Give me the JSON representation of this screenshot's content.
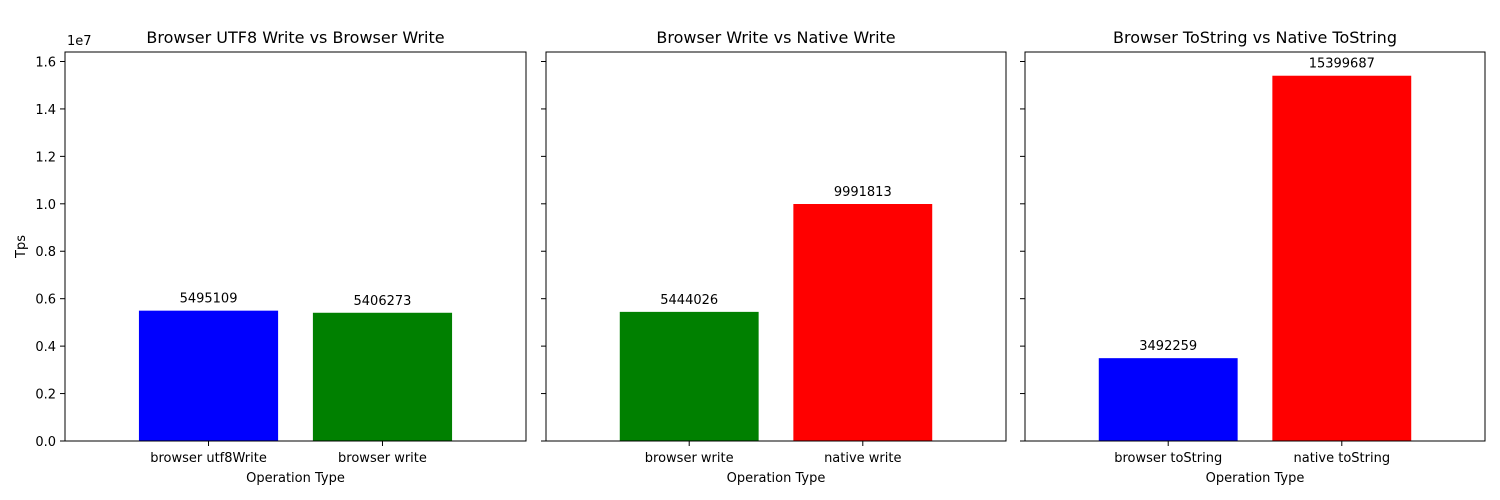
{
  "chart_data": [
    {
      "type": "bar",
      "title": "Browser UTF8 Write vs Browser Write",
      "xlabel": "Operation Type",
      "ylabel": "Tps",
      "ylim": [
        0,
        16400000
      ],
      "yticks": [
        "0.0",
        "0.2",
        "0.4",
        "0.6",
        "0.8",
        "1.0",
        "1.2",
        "1.4",
        "1.6"
      ],
      "y_offset_label": "1e7",
      "categories": [
        "browser utf8Write",
        "browser write"
      ],
      "values": [
        5495109,
        5406273
      ],
      "colors": [
        "#0000ff",
        "#008000"
      ],
      "data_labels": [
        "5495109",
        "5406273"
      ],
      "grid": false
    },
    {
      "type": "bar",
      "title": "Browser Write vs Native Write",
      "xlabel": "Operation Type",
      "ylabel": "",
      "ylim": [
        0,
        16400000
      ],
      "categories": [
        "browser write",
        "native write"
      ],
      "values": [
        5444026,
        9991813
      ],
      "colors": [
        "#008000",
        "#ff0000"
      ],
      "data_labels": [
        "5444026",
        "9991813"
      ],
      "grid": false
    },
    {
      "type": "bar",
      "title": "Browser ToString vs Native ToString",
      "xlabel": "Operation Type",
      "ylabel": "",
      "ylim": [
        0,
        16400000
      ],
      "categories": [
        "browser toString",
        "native toString"
      ],
      "values": [
        3492259,
        15399687
      ],
      "colors": [
        "#0000ff",
        "#ff0000"
      ],
      "data_labels": [
        "3492259",
        "15399687"
      ],
      "grid": false
    }
  ]
}
